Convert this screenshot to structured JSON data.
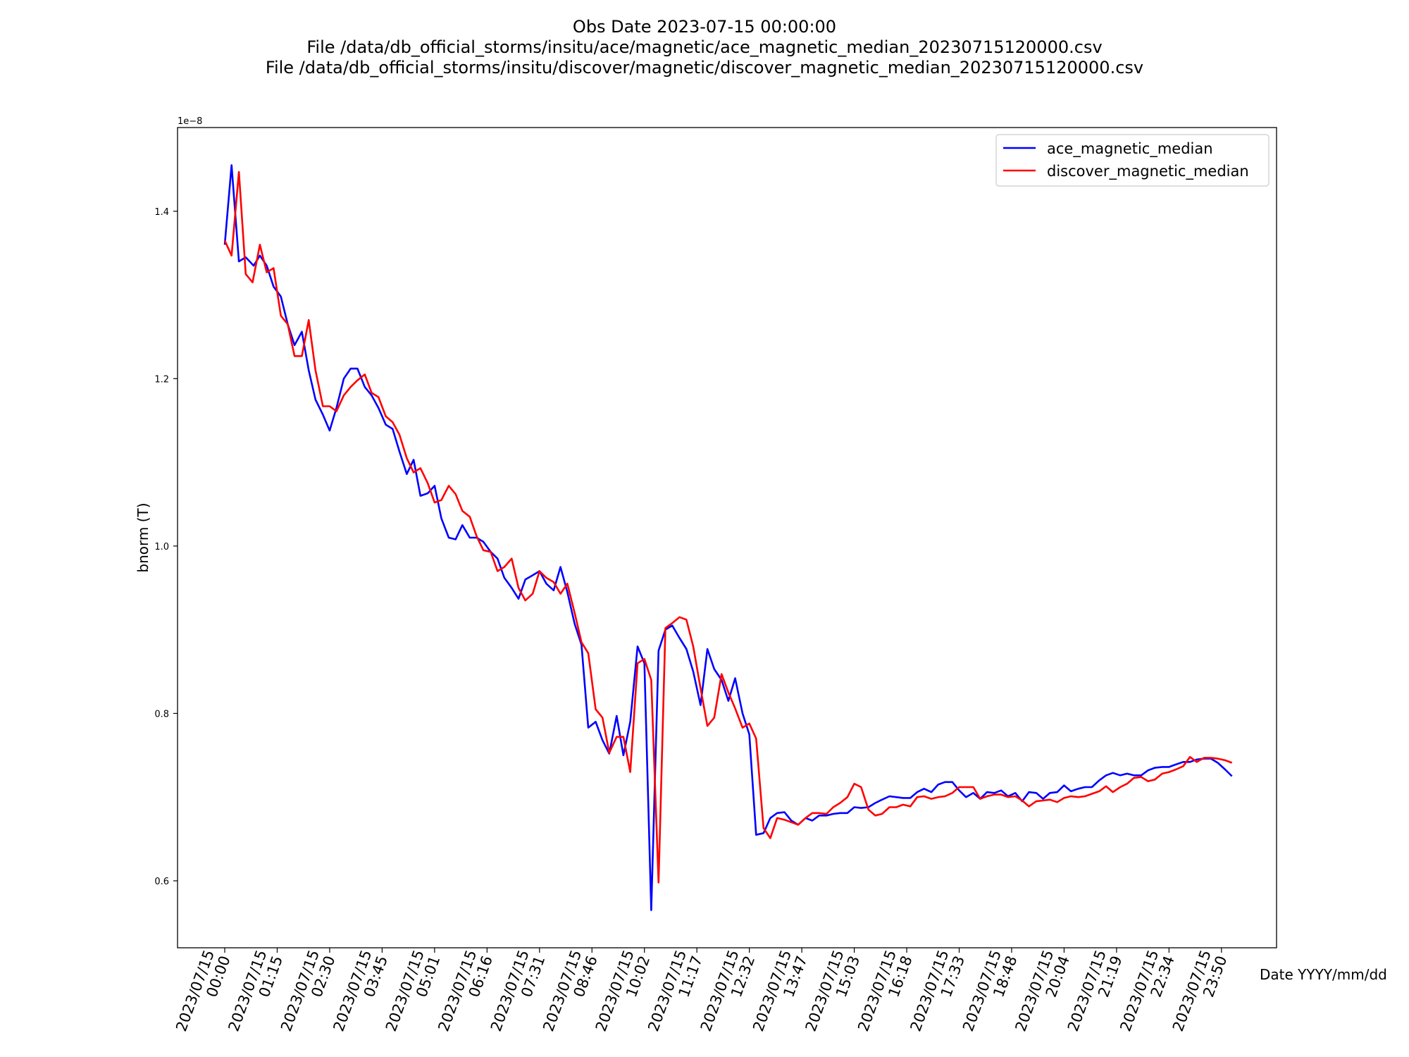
{
  "chart_data": {
    "type": "line",
    "title_lines": [
      "Obs Date 2023-07-15 00:00:00",
      "File /data/db_official_storms/insitu/ace/magnetic/ace_magnetic_median_20230715120000.csv",
      "File /data/db_official_storms/insitu/discover/magnetic/discover_magnetic_median_20230715120000.csv"
    ],
    "xlabel": "Date YYYY/mm/dd",
    "ylabel": "bnorm (T)",
    "y_offset_label": "1e−8",
    "ylim": [
      0.52,
      1.5
    ],
    "yticks": [
      0.6,
      0.8,
      1.0,
      1.2,
      1.4
    ],
    "ytick_labels": [
      "0.6",
      "0.8",
      "1.0",
      "1.2",
      "1.4"
    ],
    "xlim": [
      -0.9,
      20.05
    ],
    "xtick_labels": [
      [
        "2023/07/15",
        "00:00"
      ],
      [
        "2023/07/15",
        "01:15"
      ],
      [
        "2023/07/15",
        "02:30"
      ],
      [
        "2023/07/15",
        "03:45"
      ],
      [
        "2023/07/15",
        "05:01"
      ],
      [
        "2023/07/15",
        "06:16"
      ],
      [
        "2023/07/15",
        "07:31"
      ],
      [
        "2023/07/15",
        "08:46"
      ],
      [
        "2023/07/15",
        "10:02"
      ],
      [
        "2023/07/15",
        "11:17"
      ],
      [
        "2023/07/15",
        "12:32"
      ],
      [
        "2023/07/15",
        "13:47"
      ],
      [
        "2023/07/15",
        "15:03"
      ],
      [
        "2023/07/15",
        "16:18"
      ],
      [
        "2023/07/15",
        "17:33"
      ],
      [
        "2023/07/15",
        "18:48"
      ],
      [
        "2023/07/15",
        "20:04"
      ],
      [
        "2023/07/15",
        "21:19"
      ],
      [
        "2023/07/15",
        "22:34"
      ],
      [
        "2023/07/15",
        "23:50"
      ]
    ],
    "legend_position": "top-right",
    "series": [
      {
        "name": "ace_magnetic_median",
        "color": "#0000ff",
        "points": [
          [
            0,
            1.36
          ],
          [
            0.13,
            1.455
          ],
          [
            0.27,
            1.34
          ],
          [
            0.4,
            1.345
          ],
          [
            0.55,
            1.335
          ],
          [
            0.67,
            1.347
          ],
          [
            0.8,
            1.335
          ],
          [
            0.93,
            1.31
          ],
          [
            1.07,
            1.298
          ],
          [
            1.2,
            1.265
          ],
          [
            1.33,
            1.24
          ],
          [
            1.47,
            1.256
          ],
          [
            1.6,
            1.21
          ],
          [
            1.73,
            1.175
          ],
          [
            1.87,
            1.157
          ],
          [
            2.0,
            1.138
          ],
          [
            2.13,
            1.165
          ],
          [
            2.27,
            1.2
          ],
          [
            2.4,
            1.212
          ],
          [
            2.53,
            1.212
          ],
          [
            2.67,
            1.19
          ],
          [
            2.8,
            1.18
          ],
          [
            2.93,
            1.165
          ],
          [
            3.07,
            1.145
          ],
          [
            3.2,
            1.14
          ],
          [
            3.33,
            1.113
          ],
          [
            3.47,
            1.086
          ],
          [
            3.6,
            1.103
          ],
          [
            3.73,
            1.06
          ],
          [
            3.87,
            1.063
          ],
          [
            4.0,
            1.072
          ],
          [
            4.13,
            1.033
          ],
          [
            4.27,
            1.01
          ],
          [
            4.4,
            1.008
          ],
          [
            4.53,
            1.025
          ],
          [
            4.67,
            1.01
          ],
          [
            4.8,
            1.01
          ],
          [
            4.93,
            1.005
          ],
          [
            5.07,
            0.993
          ],
          [
            5.2,
            0.985
          ],
          [
            5.33,
            0.962
          ],
          [
            5.47,
            0.95
          ],
          [
            5.6,
            0.937
          ],
          [
            5.73,
            0.96
          ],
          [
            5.87,
            0.965
          ],
          [
            6.0,
            0.97
          ],
          [
            6.13,
            0.955
          ],
          [
            6.27,
            0.947
          ],
          [
            6.4,
            0.975
          ],
          [
            6.53,
            0.945
          ],
          [
            6.67,
            0.907
          ],
          [
            6.8,
            0.882
          ],
          [
            6.93,
            0.783
          ],
          [
            7.07,
            0.79
          ],
          [
            7.2,
            0.768
          ],
          [
            7.33,
            0.752
          ],
          [
            7.47,
            0.797
          ],
          [
            7.6,
            0.75
          ],
          [
            7.73,
            0.79
          ],
          [
            7.87,
            0.88
          ],
          [
            8.0,
            0.86
          ],
          [
            8.13,
            0.565
          ],
          [
            8.27,
            0.875
          ],
          [
            8.4,
            0.9
          ],
          [
            8.53,
            0.905
          ],
          [
            8.67,
            0.89
          ],
          [
            8.8,
            0.877
          ],
          [
            8.93,
            0.85
          ],
          [
            9.07,
            0.81
          ],
          [
            9.2,
            0.877
          ],
          [
            9.33,
            0.853
          ],
          [
            9.47,
            0.84
          ],
          [
            9.6,
            0.815
          ],
          [
            9.73,
            0.842
          ],
          [
            9.87,
            0.8
          ],
          [
            10.0,
            0.775
          ],
          [
            10.13,
            0.655
          ],
          [
            10.27,
            0.657
          ],
          [
            10.4,
            0.675
          ],
          [
            10.53,
            0.681
          ],
          [
            10.67,
            0.682
          ],
          [
            10.8,
            0.672
          ],
          [
            10.93,
            0.667
          ],
          [
            11.07,
            0.675
          ],
          [
            11.2,
            0.672
          ],
          [
            11.33,
            0.678
          ],
          [
            11.47,
            0.678
          ],
          [
            11.6,
            0.68
          ],
          [
            11.73,
            0.681
          ],
          [
            11.87,
            0.681
          ],
          [
            12.0,
            0.688
          ],
          [
            12.13,
            0.687
          ],
          [
            12.27,
            0.688
          ],
          [
            12.4,
            0.693
          ],
          [
            12.53,
            0.697
          ],
          [
            12.67,
            0.701
          ],
          [
            12.8,
            0.7
          ],
          [
            12.93,
            0.699
          ],
          [
            13.07,
            0.699
          ],
          [
            13.2,
            0.706
          ],
          [
            13.33,
            0.71
          ],
          [
            13.47,
            0.706
          ],
          [
            13.6,
            0.715
          ],
          [
            13.73,
            0.718
          ],
          [
            13.87,
            0.718
          ],
          [
            14.0,
            0.708
          ],
          [
            14.13,
            0.7
          ],
          [
            14.27,
            0.705
          ],
          [
            14.4,
            0.698
          ],
          [
            14.53,
            0.706
          ],
          [
            14.67,
            0.705
          ],
          [
            14.8,
            0.708
          ],
          [
            14.93,
            0.701
          ],
          [
            15.07,
            0.705
          ],
          [
            15.2,
            0.695
          ],
          [
            15.33,
            0.706
          ],
          [
            15.47,
            0.705
          ],
          [
            15.6,
            0.698
          ],
          [
            15.73,
            0.705
          ],
          [
            15.87,
            0.706
          ],
          [
            16.0,
            0.714
          ],
          [
            16.13,
            0.707
          ],
          [
            16.27,
            0.71
          ],
          [
            16.4,
            0.712
          ],
          [
            16.53,
            0.712
          ],
          [
            16.67,
            0.72
          ],
          [
            16.8,
            0.726
          ],
          [
            16.93,
            0.729
          ],
          [
            17.07,
            0.726
          ],
          [
            17.2,
            0.728
          ],
          [
            17.33,
            0.726
          ],
          [
            17.47,
            0.726
          ],
          [
            17.6,
            0.732
          ],
          [
            17.73,
            0.735
          ],
          [
            17.87,
            0.736
          ],
          [
            18.0,
            0.736
          ],
          [
            18.13,
            0.739
          ],
          [
            18.27,
            0.742
          ],
          [
            18.4,
            0.742
          ],
          [
            18.53,
            0.745
          ],
          [
            18.67,
            0.746
          ],
          [
            18.8,
            0.746
          ],
          [
            18.93,
            0.741
          ],
          [
            19.07,
            0.733
          ],
          [
            19.2,
            0.725
          ]
        ]
      },
      {
        "name": "discover_magnetic_median",
        "color": "#ff0000",
        "points": [
          [
            0,
            1.365
          ],
          [
            0.13,
            1.347
          ],
          [
            0.27,
            1.447
          ],
          [
            0.4,
            1.325
          ],
          [
            0.53,
            1.315
          ],
          [
            0.67,
            1.36
          ],
          [
            0.8,
            1.327
          ],
          [
            0.93,
            1.332
          ],
          [
            1.07,
            1.275
          ],
          [
            1.2,
            1.265
          ],
          [
            1.33,
            1.227
          ],
          [
            1.47,
            1.227
          ],
          [
            1.6,
            1.27
          ],
          [
            1.73,
            1.21
          ],
          [
            1.87,
            1.167
          ],
          [
            2.0,
            1.167
          ],
          [
            2.13,
            1.161
          ],
          [
            2.27,
            1.18
          ],
          [
            2.4,
            1.19
          ],
          [
            2.53,
            1.198
          ],
          [
            2.67,
            1.205
          ],
          [
            2.8,
            1.183
          ],
          [
            2.93,
            1.178
          ],
          [
            3.07,
            1.155
          ],
          [
            3.2,
            1.148
          ],
          [
            3.33,
            1.133
          ],
          [
            3.47,
            1.105
          ],
          [
            3.6,
            1.088
          ],
          [
            3.73,
            1.093
          ],
          [
            3.87,
            1.075
          ],
          [
            4.0,
            1.052
          ],
          [
            4.13,
            1.055
          ],
          [
            4.27,
            1.072
          ],
          [
            4.4,
            1.062
          ],
          [
            4.53,
            1.042
          ],
          [
            4.67,
            1.035
          ],
          [
            4.8,
            1.012
          ],
          [
            4.93,
            0.995
          ],
          [
            5.07,
            0.993
          ],
          [
            5.2,
            0.97
          ],
          [
            5.33,
            0.975
          ],
          [
            5.47,
            0.985
          ],
          [
            5.6,
            0.95
          ],
          [
            5.73,
            0.935
          ],
          [
            5.87,
            0.943
          ],
          [
            6.0,
            0.97
          ],
          [
            6.13,
            0.962
          ],
          [
            6.27,
            0.957
          ],
          [
            6.4,
            0.943
          ],
          [
            6.53,
            0.955
          ],
          [
            6.67,
            0.92
          ],
          [
            6.8,
            0.885
          ],
          [
            6.93,
            0.872
          ],
          [
            7.07,
            0.805
          ],
          [
            7.2,
            0.795
          ],
          [
            7.33,
            0.753
          ],
          [
            7.47,
            0.772
          ],
          [
            7.6,
            0.772
          ],
          [
            7.73,
            0.73
          ],
          [
            7.87,
            0.86
          ],
          [
            8.0,
            0.865
          ],
          [
            8.13,
            0.84
          ],
          [
            8.27,
            0.598
          ],
          [
            8.4,
            0.902
          ],
          [
            8.53,
            0.908
          ],
          [
            8.67,
            0.915
          ],
          [
            8.8,
            0.912
          ],
          [
            8.93,
            0.88
          ],
          [
            9.07,
            0.83
          ],
          [
            9.2,
            0.785
          ],
          [
            9.33,
            0.795
          ],
          [
            9.47,
            0.847
          ],
          [
            9.6,
            0.825
          ],
          [
            9.73,
            0.806
          ],
          [
            9.87,
            0.783
          ],
          [
            10.0,
            0.788
          ],
          [
            10.13,
            0.77
          ],
          [
            10.27,
            0.663
          ],
          [
            10.4,
            0.651
          ],
          [
            10.53,
            0.675
          ],
          [
            10.67,
            0.673
          ],
          [
            10.8,
            0.67
          ],
          [
            10.93,
            0.667
          ],
          [
            11.07,
            0.675
          ],
          [
            11.2,
            0.681
          ],
          [
            11.33,
            0.681
          ],
          [
            11.47,
            0.68
          ],
          [
            11.6,
            0.688
          ],
          [
            11.73,
            0.693
          ],
          [
            11.87,
            0.7
          ],
          [
            12.0,
            0.716
          ],
          [
            12.13,
            0.712
          ],
          [
            12.27,
            0.685
          ],
          [
            12.4,
            0.678
          ],
          [
            12.53,
            0.68
          ],
          [
            12.67,
            0.688
          ],
          [
            12.8,
            0.688
          ],
          [
            12.93,
            0.691
          ],
          [
            13.07,
            0.689
          ],
          [
            13.2,
            0.7
          ],
          [
            13.33,
            0.701
          ],
          [
            13.47,
            0.698
          ],
          [
            13.6,
            0.7
          ],
          [
            13.73,
            0.701
          ],
          [
            13.87,
            0.705
          ],
          [
            14.0,
            0.712
          ],
          [
            14.13,
            0.712
          ],
          [
            14.27,
            0.712
          ],
          [
            14.4,
            0.698
          ],
          [
            14.53,
            0.701
          ],
          [
            14.67,
            0.703
          ],
          [
            14.8,
            0.703
          ],
          [
            14.93,
            0.7
          ],
          [
            15.07,
            0.701
          ],
          [
            15.2,
            0.696
          ],
          [
            15.33,
            0.689
          ],
          [
            15.47,
            0.695
          ],
          [
            15.6,
            0.696
          ],
          [
            15.73,
            0.697
          ],
          [
            15.87,
            0.694
          ],
          [
            16.0,
            0.699
          ],
          [
            16.13,
            0.701
          ],
          [
            16.27,
            0.7
          ],
          [
            16.4,
            0.701
          ],
          [
            16.53,
            0.704
          ],
          [
            16.67,
            0.707
          ],
          [
            16.8,
            0.713
          ],
          [
            16.93,
            0.706
          ],
          [
            17.07,
            0.712
          ],
          [
            17.2,
            0.716
          ],
          [
            17.33,
            0.723
          ],
          [
            17.47,
            0.724
          ],
          [
            17.6,
            0.719
          ],
          [
            17.73,
            0.721
          ],
          [
            17.87,
            0.728
          ],
          [
            18.0,
            0.73
          ],
          [
            18.13,
            0.733
          ],
          [
            18.27,
            0.737
          ],
          [
            18.4,
            0.748
          ],
          [
            18.53,
            0.742
          ],
          [
            18.67,
            0.747
          ],
          [
            18.8,
            0.747
          ],
          [
            18.93,
            0.746
          ],
          [
            19.07,
            0.744
          ],
          [
            19.2,
            0.741
          ]
        ]
      }
    ]
  }
}
